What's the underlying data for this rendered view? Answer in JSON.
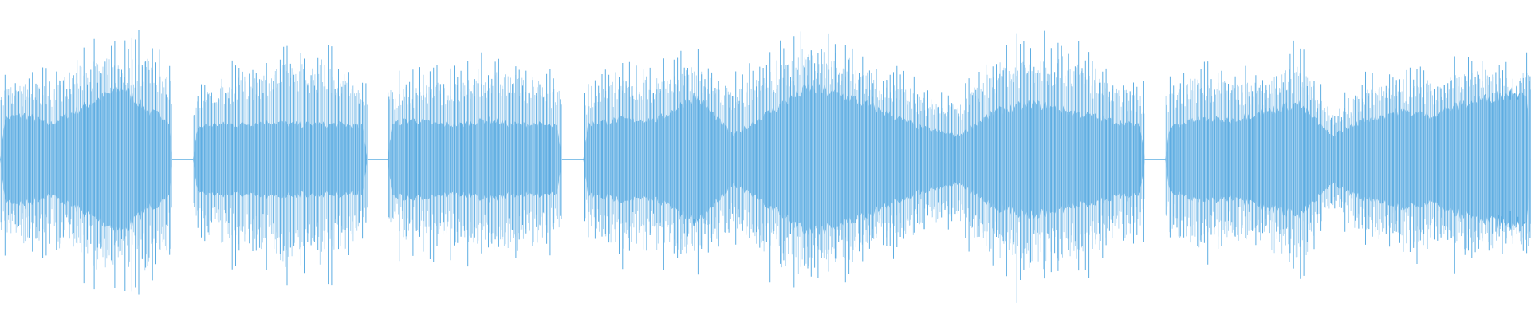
{
  "chart_data": {
    "type": "area",
    "title": "",
    "xlabel": "",
    "ylabel": "",
    "grid": false,
    "legend": "none",
    "ylim": [
      -1,
      1
    ],
    "color": "#5dade2",
    "light_color": "#a9d3f1",
    "background": "#ffffff",
    "segments": [
      {
        "start": 0.0,
        "end": 0.113,
        "peak": [
          0.55,
          0.6,
          0.58,
          0.72,
          0.8,
          0.78,
          0.85,
          0.6
        ],
        "core": [
          0.25,
          0.28,
          0.22,
          0.3,
          0.38,
          0.45,
          0.3,
          0.25
        ]
      },
      {
        "start": 0.126,
        "end": 0.24,
        "peak": [
          0.45,
          0.6,
          0.65,
          0.7,
          0.78,
          0.75,
          0.7,
          0.5
        ],
        "core": [
          0.2,
          0.22,
          0.22,
          0.24,
          0.22,
          0.22,
          0.22,
          0.2
        ]
      },
      {
        "start": 0.253,
        "end": 0.367,
        "peak": [
          0.55,
          0.58,
          0.62,
          0.6,
          0.7,
          0.68,
          0.62,
          0.55
        ],
        "core": [
          0.22,
          0.25,
          0.22,
          0.22,
          0.25,
          0.22,
          0.22,
          0.2
        ]
      },
      {
        "start": 0.381,
        "end": 0.748,
        "peak": [
          0.5,
          0.62,
          0.65,
          0.72,
          0.55,
          0.7,
          0.9,
          0.82,
          0.65,
          0.5,
          0.42,
          0.75,
          0.85,
          0.8,
          0.6,
          0.5
        ],
        "core": [
          0.22,
          0.25,
          0.25,
          0.4,
          0.15,
          0.3,
          0.45,
          0.4,
          0.3,
          0.2,
          0.15,
          0.3,
          0.35,
          0.3,
          0.25,
          0.2
        ]
      },
      {
        "start": 0.761,
        "end": 1.0,
        "peak": [
          0.5,
          0.65,
          0.62,
          0.6,
          0.78,
          0.35,
          0.55,
          0.62,
          0.6,
          0.75,
          0.65,
          0.7
        ],
        "core": [
          0.2,
          0.25,
          0.25,
          0.3,
          0.35,
          0.15,
          0.25,
          0.3,
          0.28,
          0.35,
          0.4,
          0.45
        ]
      }
    ]
  }
}
